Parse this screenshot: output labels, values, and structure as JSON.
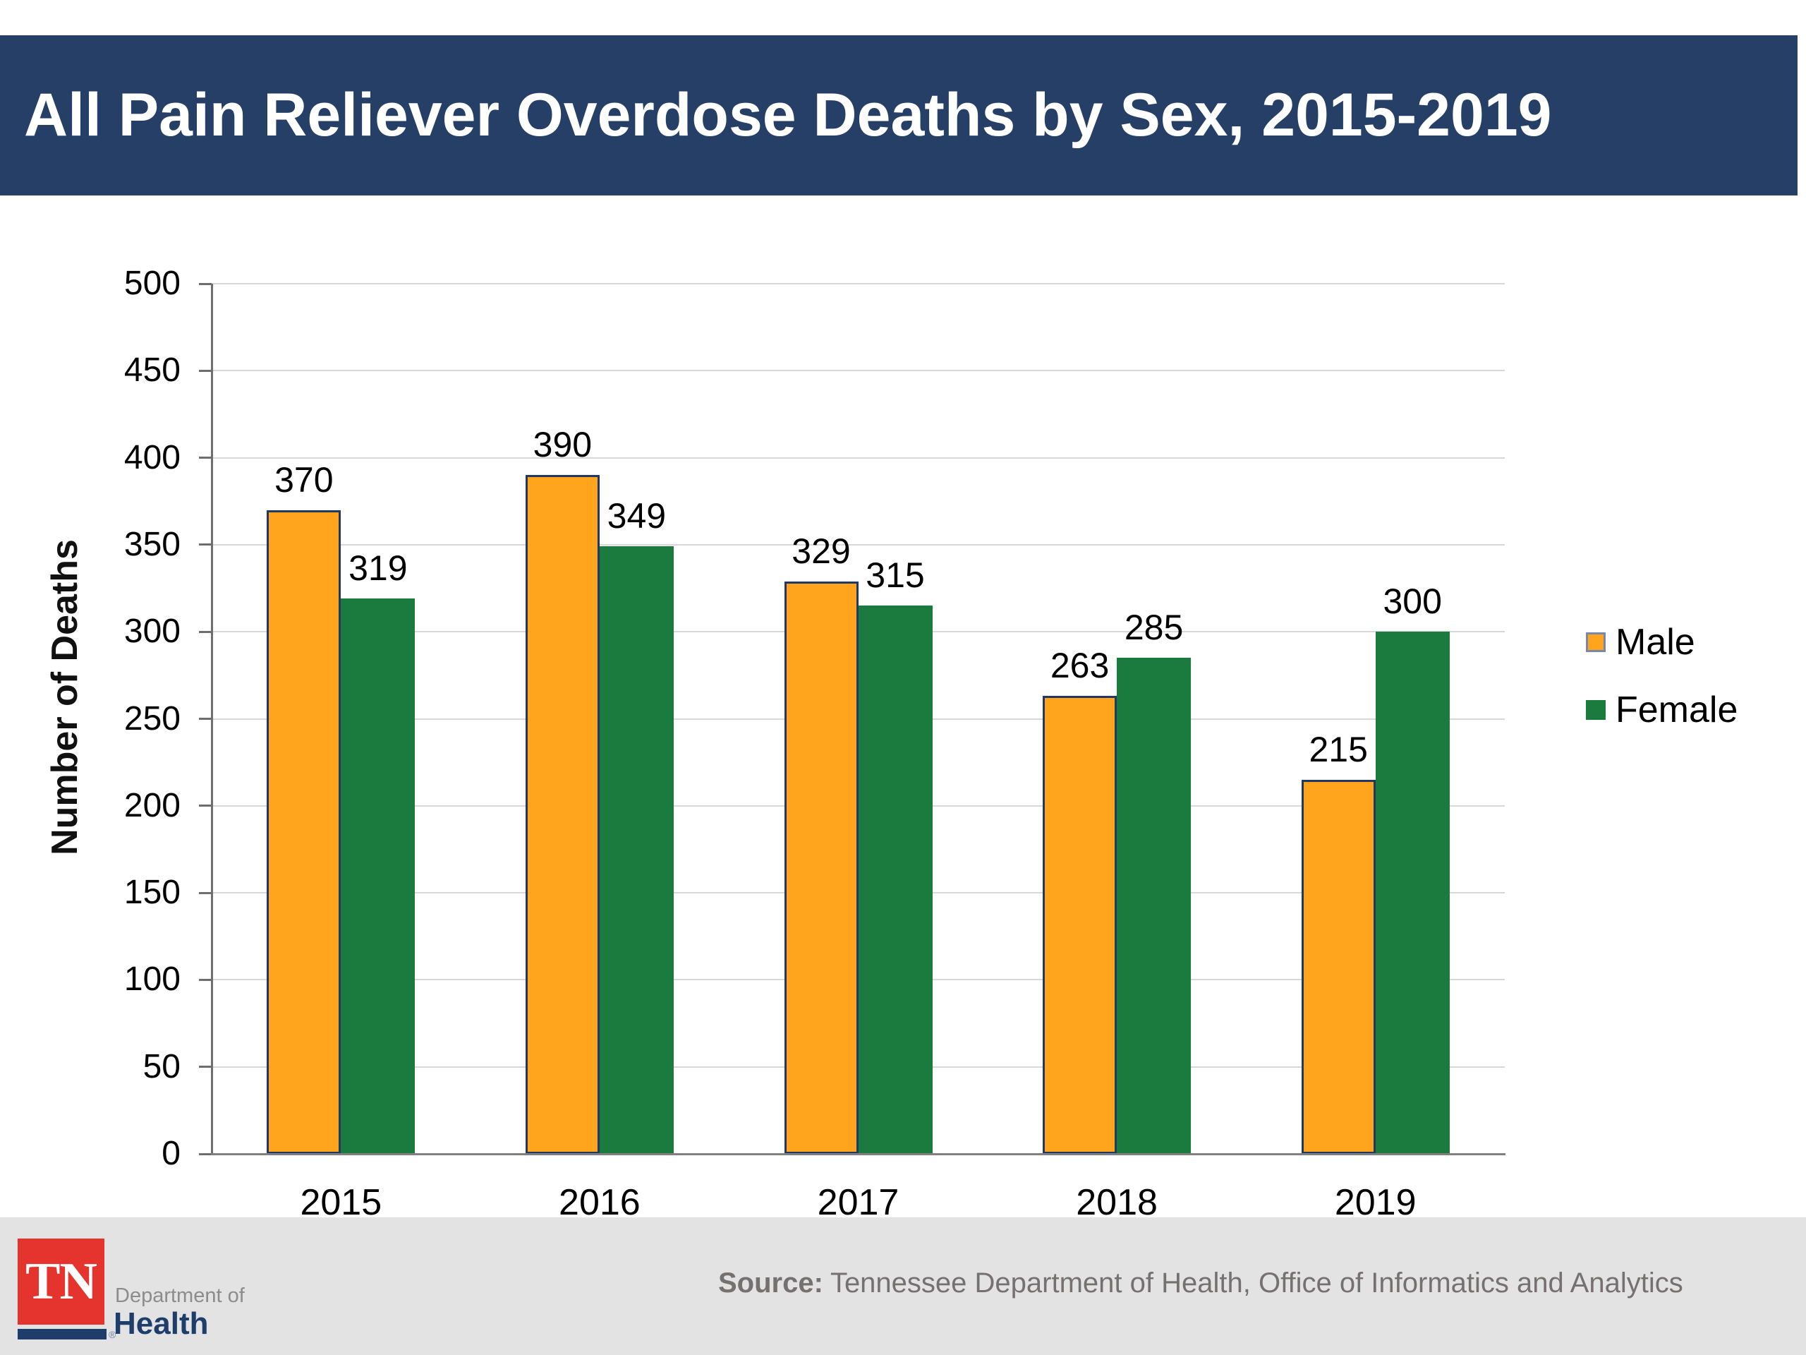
{
  "header": {
    "title": "All Pain Reliever Overdose Deaths by Sex, 2015-2019",
    "bg": "#263F66",
    "text_color": "#FFFFFF"
  },
  "chart_data": {
    "type": "bar",
    "title": "All Pain Reliever Overdose Deaths by Sex, 2015-2019",
    "categories": [
      "2015",
      "2016",
      "2017",
      "2018",
      "2019"
    ],
    "series": [
      {
        "name": "Male",
        "color": "#FFA41C",
        "border_color": "#1F3864",
        "values": [
          370,
          390,
          329,
          263,
          215
        ]
      },
      {
        "name": "Female",
        "color": "#1B7B3E",
        "border_color": "#1B7B3E",
        "values": [
          319,
          349,
          315,
          285,
          300
        ]
      }
    ],
    "xlabel": "",
    "ylabel": "Number of Deaths",
    "ylim": [
      0,
      500
    ],
    "ytick_step": 50,
    "grid": true,
    "gridline_color": "#D8D8D8",
    "legend_position": "right",
    "data_labels": true
  },
  "legend": {
    "items": [
      {
        "label": "Male",
        "color": "#FFA41C",
        "border": "#7688AC"
      },
      {
        "label": "Female",
        "color": "#1B7B3E",
        "border": "#1B7B3E"
      }
    ]
  },
  "footer": {
    "source_label": "Source:",
    "source_text": "Tennessee Department of Health, Office of Informatics and Analytics",
    "logo": {
      "tn": "TN",
      "dept_line": "Department of",
      "name": "Health",
      "reg": "®"
    }
  }
}
